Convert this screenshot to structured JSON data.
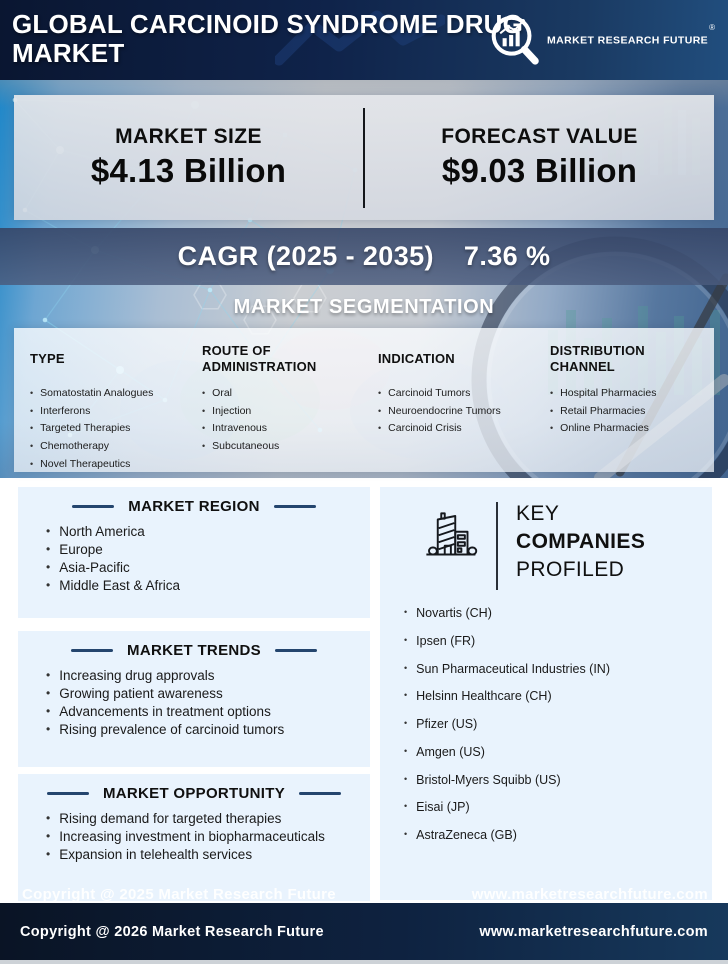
{
  "header": {
    "title": "GLOBAL CARCINOID SYNDROME DRUG MARKET",
    "logo": {
      "text": "MARKET RESEARCH FUTURE",
      "registered": "®"
    }
  },
  "stats": {
    "market_size": {
      "label": "MARKET SIZE",
      "value": "$4.13 Billion"
    },
    "forecast_value": {
      "label": "FORECAST VALUE",
      "value": "$9.03 Billion"
    },
    "cagr": {
      "label": "CAGR (2025 - 2035)",
      "value": "7.36 %"
    }
  },
  "segmentation": {
    "title": "MARKET SEGMENTATION",
    "columns": [
      {
        "heading": "TYPE",
        "items": [
          "Somatostatin Analogues",
          "Interferons",
          "Targeted Therapies",
          "Chemotherapy",
          "Novel Therapeutics"
        ]
      },
      {
        "heading": "ROUTE OF ADMINISTRATION",
        "items": [
          "Oral",
          "Injection",
          "Intravenous",
          "Subcutaneous"
        ]
      },
      {
        "heading": "INDICATION",
        "items": [
          "Carcinoid Tumors",
          "Neuroendocrine Tumors",
          "Carcinoid Crisis"
        ]
      },
      {
        "heading": "DISTRIBUTION CHANNEL",
        "items": [
          "Hospital Pharmacies",
          "Retail Pharmacies",
          "Online Pharmacies"
        ]
      }
    ]
  },
  "region": {
    "title": "MARKET REGION",
    "items": [
      "North America",
      "Europe",
      "Asia-Pacific",
      "Middle East & Africa"
    ]
  },
  "trends": {
    "title": "MARKET TRENDS",
    "items": [
      "Increasing drug approvals",
      "Growing patient awareness",
      "Advancements in treatment options",
      "Rising prevalence of carcinoid tumors"
    ]
  },
  "opportunity": {
    "title": "MARKET OPPORTUNITY",
    "items": [
      "Rising demand for targeted therapies",
      "Increasing investment in biopharmaceuticals",
      "Expansion in telehealth services"
    ]
  },
  "companies": {
    "title_lines": [
      "KEY",
      "COMPANIES",
      "PROFILED"
    ],
    "items": [
      "Novartis (CH)",
      "Ipsen (FR)",
      "Sun Pharmaceutical Industries (IN)",
      "Helsinn Healthcare (CH)",
      "Pfizer (US)",
      "Amgen (US)",
      "Bristol-Myers Squibb (US)",
      "Eisai (JP)",
      "AstraZeneca (GB)"
    ]
  },
  "overlay_footer": {
    "copyright": "Copyright @ 2025 Market Research Future",
    "website": "www.marketresearchfuture.com"
  },
  "footer": {
    "copyright": "Copyright @ 2026 Market Research Future",
    "website": "www.marketresearchfuture.com"
  },
  "icons": {
    "brand": "magnifier-chart-icon",
    "companies": "office-building-icon",
    "bullet": "•"
  },
  "colors": {
    "header_navy": "#0f234a",
    "accent_navy": "#24456e",
    "cagr_band": "#41547c",
    "panel_light_blue": "#e9f3fd",
    "footer_navy": "#0e2240",
    "white": "#ffffff"
  }
}
